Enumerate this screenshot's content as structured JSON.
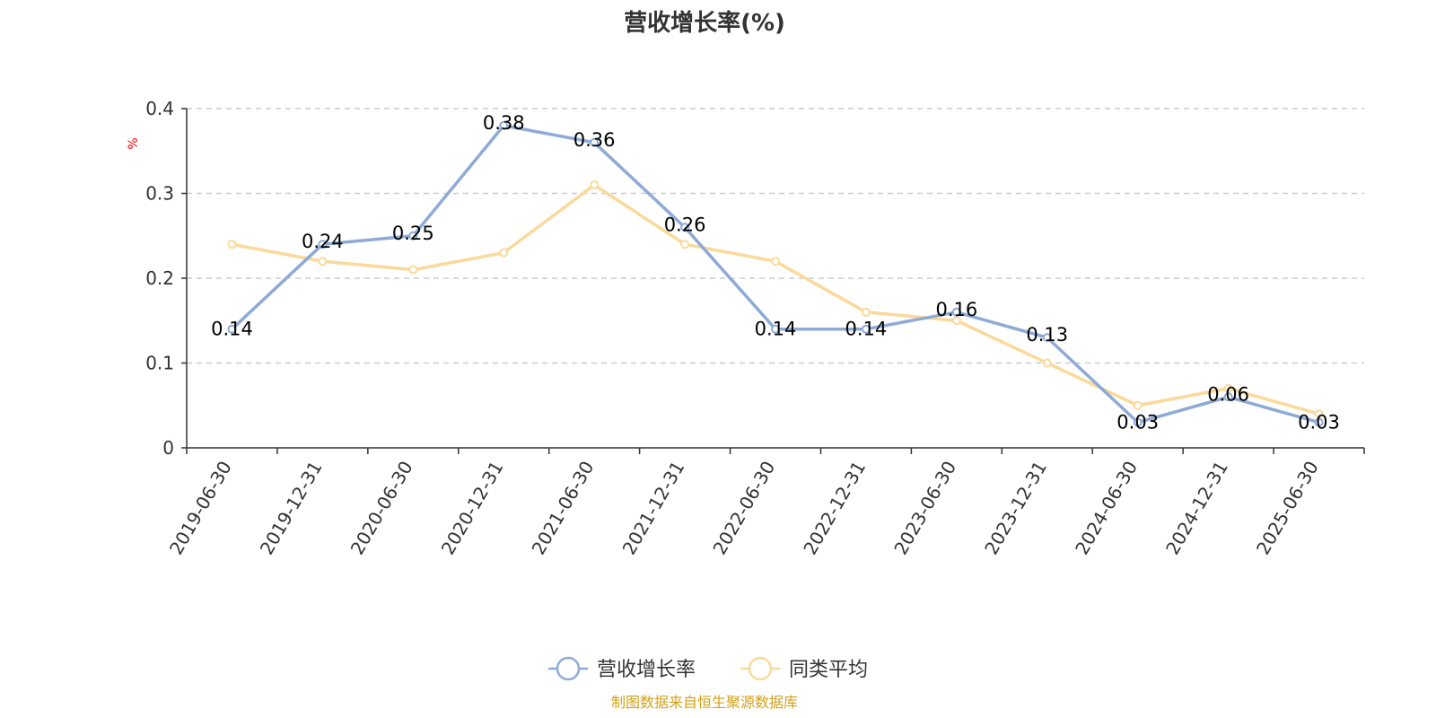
{
  "chart_data": {
    "type": "line",
    "title": "营收增长率(%)",
    "ylabel": "%",
    "xlabel": "",
    "ylim": [
      0,
      0.4
    ],
    "yticks": [
      "0",
      "0.1",
      "0.2",
      "0.3",
      "0.4"
    ],
    "ytick_values": [
      0,
      0.1,
      0.2,
      0.3,
      0.4
    ],
    "categories": [
      "2019-06-30",
      "2019-12-31",
      "2020-06-30",
      "2020-12-31",
      "2021-06-30",
      "2021-12-31",
      "2022-06-30",
      "2022-12-31",
      "2023-06-30",
      "2023-12-31",
      "2024-06-30",
      "2024-12-31",
      "2025-06-30"
    ],
    "grid": true,
    "legend_position": "bottom-center",
    "series": [
      {
        "name": "营收增长率",
        "color": "#8eaad6",
        "values": [
          0.14,
          0.24,
          0.25,
          0.38,
          0.36,
          0.26,
          0.14,
          0.14,
          0.16,
          0.13,
          0.03,
          0.06,
          0.03
        ],
        "labels": [
          "0.14",
          "0.24",
          "0.25",
          "0.38",
          "0.36",
          "0.26",
          "0.14",
          "0.14",
          "0.16",
          "0.13",
          "0.03",
          "0.06",
          "0.03"
        ]
      },
      {
        "name": "同类平均",
        "color": "#fad99a",
        "values": [
          0.24,
          0.22,
          0.21,
          0.23,
          0.31,
          0.24,
          0.22,
          0.16,
          0.15,
          0.1,
          0.05,
          0.07,
          0.04
        ]
      }
    ]
  },
  "source_text": "制图数据来自恒生聚源数据库"
}
